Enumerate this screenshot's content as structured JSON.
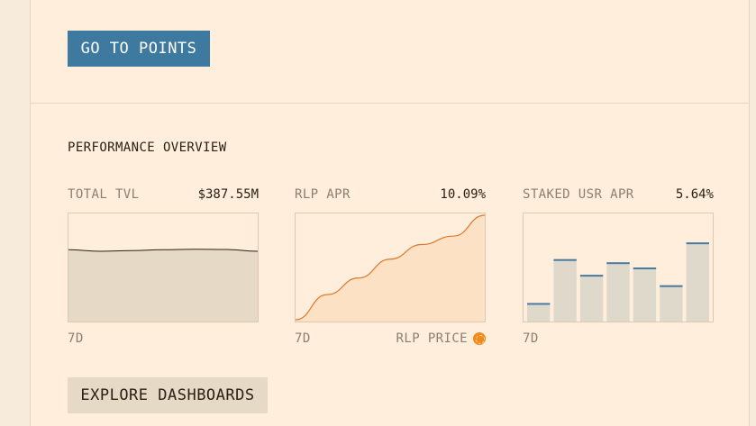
{
  "cta": {
    "points_label": "GO TO POINTS"
  },
  "overview": {
    "title": "PERFORMANCE OVERVIEW",
    "cards": [
      {
        "label": "TOTAL TVL",
        "value": "$387.55M",
        "footer_left": "7D",
        "footer_right": ""
      },
      {
        "label": "RLP APR",
        "value": "10.09%",
        "footer_left": "7D",
        "footer_right": "RLP PRICE"
      },
      {
        "label": "STAKED USR APR",
        "value": "5.64%",
        "footer_left": "7D",
        "footer_right": ""
      }
    ]
  },
  "footer": {
    "dashboards_label": "EXPLORE DASHBOARDS"
  },
  "colors": {
    "page_bg": "#f7ebdb",
    "panel_bg": "#ffeedc",
    "primary_button": "#3e7a9f",
    "secondary_button": "#e6d9c6",
    "tvl_fill": "#e6d9c6",
    "rlp_line": "#e0772a",
    "rlp_fill": "#fde1c4",
    "bar_fill": "#dfd9cc",
    "bar_cap": "#4b7aa0",
    "coin": "#f28a1c"
  },
  "chart_data": [
    {
      "type": "area",
      "series": [
        {
          "values": [
            0.67,
            0.655,
            0.662,
            0.67,
            0.675,
            0.672,
            0.655
          ]
        }
      ],
      "ylim": [
        0,
        1
      ]
    },
    {
      "type": "area",
      "series": [
        {
          "values": [
            0.0,
            0.24,
            0.4,
            0.58,
            0.72,
            0.8,
            1.0
          ]
        }
      ],
      "ylim": [
        0,
        1
      ]
    },
    {
      "type": "bar",
      "series": [
        {
          "values": [
            0.16,
            0.58,
            0.43,
            0.55,
            0.5,
            0.33,
            0.74
          ]
        }
      ],
      "ylim": [
        0,
        1
      ]
    }
  ]
}
